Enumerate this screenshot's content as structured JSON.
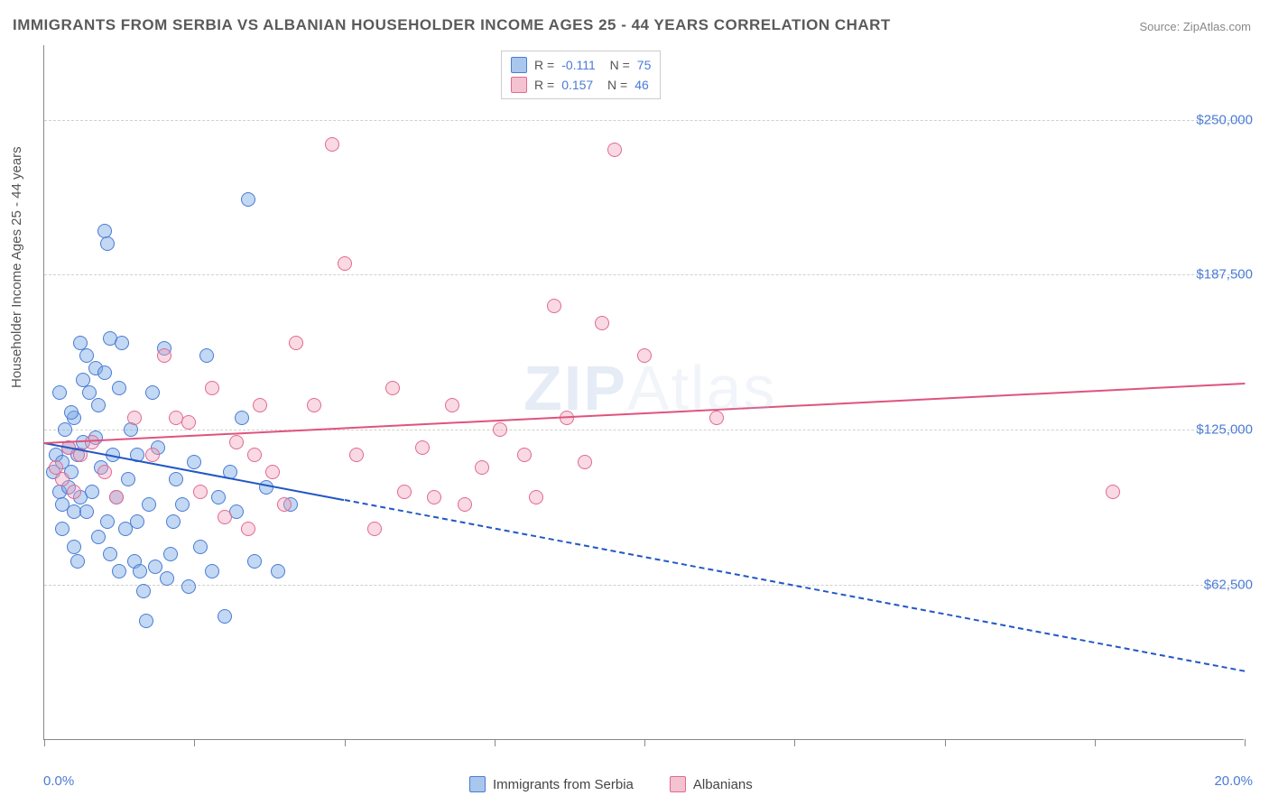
{
  "title": "IMMIGRANTS FROM SERBIA VS ALBANIAN HOUSEHOLDER INCOME AGES 25 - 44 YEARS CORRELATION CHART",
  "source": "Source: ZipAtlas.com",
  "ylabel": "Householder Income Ages 25 - 44 years",
  "watermark_1": "ZIP",
  "watermark_2": "Atlas",
  "chart": {
    "type": "scatter",
    "background_color": "#ffffff",
    "grid_color": "#d0d0d0",
    "axis_color": "#888888",
    "xlim": [
      0,
      20
    ],
    "ylim": [
      0,
      280000
    ],
    "y_gridlines": [
      62500,
      125000,
      187500,
      250000
    ],
    "y_tick_labels": [
      "$62,500",
      "$125,000",
      "$187,500",
      "$250,000"
    ],
    "x_tick_positions": [
      0,
      2.5,
      5,
      7.5,
      10,
      12.5,
      15,
      17.5,
      20
    ],
    "x_start_label": "0.0%",
    "x_end_label": "20.0%",
    "tick_label_color": "#4a7bd6",
    "point_radius": 8,
    "point_border_width": 1
  },
  "series": [
    {
      "name": "Immigrants from Serbia",
      "fill_color": "rgba(120,168,228,0.45)",
      "border_color": "#4a7bd6",
      "swatch_fill": "#a9c7ec",
      "swatch_border": "#4a7bd6",
      "R": "-0.111",
      "N": "75",
      "trend": {
        "color": "#2257c5",
        "solid_x_range": [
          0,
          5
        ],
        "dashed_x_range": [
          5,
          20
        ],
        "y_at_x0": 120000,
        "y_at_x20": 28000
      },
      "points": [
        [
          0.2,
          115000
        ],
        [
          0.25,
          100000
        ],
        [
          0.3,
          112000
        ],
        [
          0.3,
          95000
        ],
        [
          0.35,
          125000
        ],
        [
          0.4,
          118000
        ],
        [
          0.4,
          102000
        ],
        [
          0.45,
          108000
        ],
        [
          0.5,
          130000
        ],
        [
          0.5,
          92000
        ],
        [
          0.55,
          115000
        ],
        [
          0.6,
          160000
        ],
        [
          0.6,
          98000
        ],
        [
          0.65,
          120000
        ],
        [
          0.7,
          155000
        ],
        [
          0.75,
          140000
        ],
        [
          0.8,
          100000
        ],
        [
          0.85,
          150000
        ],
        [
          0.9,
          135000
        ],
        [
          0.95,
          110000
        ],
        [
          1.0,
          205000
        ],
        [
          1.0,
          148000
        ],
        [
          1.05,
          200000
        ],
        [
          1.1,
          162000
        ],
        [
          1.15,
          115000
        ],
        [
          1.2,
          98000
        ],
        [
          1.25,
          142000
        ],
        [
          1.3,
          160000
        ],
        [
          1.35,
          85000
        ],
        [
          1.4,
          105000
        ],
        [
          1.45,
          125000
        ],
        [
          1.5,
          72000
        ],
        [
          1.55,
          88000
        ],
        [
          1.6,
          68000
        ],
        [
          1.65,
          60000
        ],
        [
          1.7,
          48000
        ],
        [
          1.75,
          95000
        ],
        [
          1.8,
          140000
        ],
        [
          1.85,
          70000
        ],
        [
          1.9,
          118000
        ],
        [
          2.0,
          158000
        ],
        [
          2.05,
          65000
        ],
        [
          2.1,
          75000
        ],
        [
          2.2,
          105000
        ],
        [
          2.3,
          95000
        ],
        [
          2.4,
          62000
        ],
        [
          2.5,
          112000
        ],
        [
          2.6,
          78000
        ],
        [
          2.7,
          155000
        ],
        [
          2.8,
          68000
        ],
        [
          2.9,
          98000
        ],
        [
          3.0,
          50000
        ],
        [
          3.1,
          108000
        ],
        [
          3.2,
          92000
        ],
        [
          3.3,
          130000
        ],
        [
          3.4,
          218000
        ],
        [
          3.5,
          72000
        ],
        [
          3.7,
          102000
        ],
        [
          3.9,
          68000
        ],
        [
          4.1,
          95000
        ],
        [
          0.3,
          85000
        ],
        [
          0.5,
          78000
        ],
        [
          0.7,
          92000
        ],
        [
          0.9,
          82000
        ],
        [
          1.1,
          75000
        ],
        [
          0.25,
          140000
        ],
        [
          0.45,
          132000
        ],
        [
          0.65,
          145000
        ],
        [
          0.85,
          122000
        ],
        [
          1.05,
          88000
        ],
        [
          0.15,
          108000
        ],
        [
          0.55,
          72000
        ],
        [
          1.25,
          68000
        ],
        [
          1.55,
          115000
        ],
        [
          2.15,
          88000
        ]
      ]
    },
    {
      "name": "Albanians",
      "fill_color": "rgba(240,160,185,0.40)",
      "border_color": "#e16a8f",
      "swatch_fill": "#f4c2d1",
      "swatch_border": "#e16a8f",
      "R": "0.157",
      "N": "46",
      "trend": {
        "color": "#e0537d",
        "solid_x_range": [
          0,
          20
        ],
        "dashed_x_range": null,
        "y_at_x0": 120000,
        "y_at_x20": 144000
      },
      "points": [
        [
          0.2,
          110000
        ],
        [
          0.3,
          105000
        ],
        [
          0.4,
          118000
        ],
        [
          0.5,
          100000
        ],
        [
          0.6,
          115000
        ],
        [
          0.8,
          120000
        ],
        [
          1.0,
          108000
        ],
        [
          1.2,
          98000
        ],
        [
          1.5,
          130000
        ],
        [
          1.8,
          115000
        ],
        [
          2.0,
          155000
        ],
        [
          2.2,
          130000
        ],
        [
          2.4,
          128000
        ],
        [
          2.6,
          100000
        ],
        [
          2.8,
          142000
        ],
        [
          3.0,
          90000
        ],
        [
          3.2,
          120000
        ],
        [
          3.4,
          85000
        ],
        [
          3.6,
          135000
        ],
        [
          3.8,
          108000
        ],
        [
          4.0,
          95000
        ],
        [
          4.2,
          160000
        ],
        [
          4.5,
          135000
        ],
        [
          4.8,
          240000
        ],
        [
          5.0,
          192000
        ],
        [
          5.2,
          115000
        ],
        [
          5.5,
          85000
        ],
        [
          5.8,
          142000
        ],
        [
          6.0,
          100000
        ],
        [
          6.3,
          118000
        ],
        [
          6.5,
          98000
        ],
        [
          6.8,
          135000
        ],
        [
          7.0,
          95000
        ],
        [
          7.3,
          110000
        ],
        [
          7.6,
          125000
        ],
        [
          8.0,
          115000
        ],
        [
          8.5,
          175000
        ],
        [
          8.7,
          130000
        ],
        [
          9.0,
          112000
        ],
        [
          9.3,
          168000
        ],
        [
          9.5,
          238000
        ],
        [
          10.0,
          155000
        ],
        [
          11.2,
          130000
        ],
        [
          8.2,
          98000
        ],
        [
          17.8,
          100000
        ],
        [
          3.5,
          115000
        ]
      ]
    }
  ],
  "legend_bottom": [
    {
      "label": "Immigrants from Serbia",
      "fill": "#a9c7ec",
      "border": "#4a7bd6"
    },
    {
      "label": "Albanians",
      "fill": "#f4c2d1",
      "border": "#e16a8f"
    }
  ]
}
